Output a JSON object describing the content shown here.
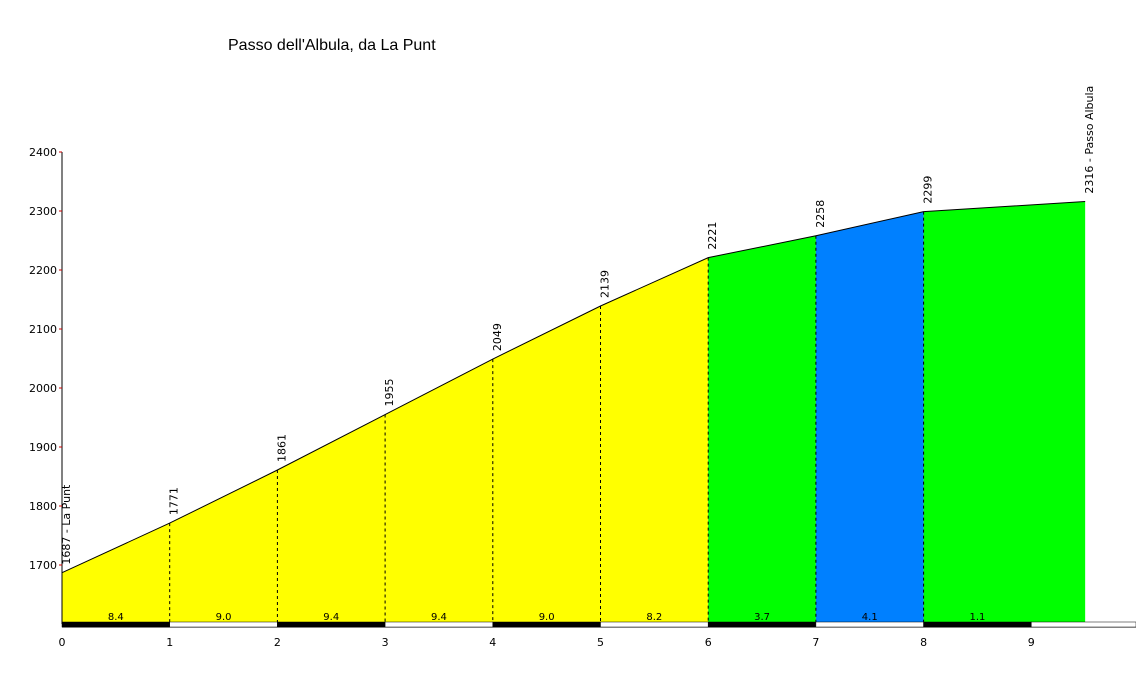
{
  "chart_data": {
    "type": "area",
    "title": "Passo dell'Albula, da La Punt",
    "xlabel": "",
    "ylabel": "",
    "xlim": [
      0,
      10
    ],
    "ylim": [
      1600,
      2400
    ],
    "x_ticks": [
      0,
      1,
      2,
      3,
      4,
      5,
      6,
      7,
      8,
      9
    ],
    "y_ticks": [
      1700,
      1800,
      1900,
      2000,
      2100,
      2200,
      2300,
      2400
    ],
    "points": [
      {
        "x": 0,
        "y": 1687,
        "label": "1687 - La Punt"
      },
      {
        "x": 1,
        "y": 1771,
        "label": "1771"
      },
      {
        "x": 2,
        "y": 1861,
        "label": "1861"
      },
      {
        "x": 3,
        "y": 1955,
        "label": "1955"
      },
      {
        "x": 4,
        "y": 2049,
        "label": "2049"
      },
      {
        "x": 5,
        "y": 2139,
        "label": "2139"
      },
      {
        "x": 6,
        "y": 2221,
        "label": "2221"
      },
      {
        "x": 7,
        "y": 2258,
        "label": "2258"
      },
      {
        "x": 8,
        "y": 2299,
        "label": "2299"
      },
      {
        "x": 9.5,
        "y": 2316,
        "label": "2316 - Passo Albula"
      }
    ],
    "segments": [
      {
        "from": 0,
        "to": 1,
        "gradient": "8.4",
        "color": "#ffff00"
      },
      {
        "from": 1,
        "to": 2,
        "gradient": "9.0",
        "color": "#ffff00"
      },
      {
        "from": 2,
        "to": 3,
        "gradient": "9.4",
        "color": "#ffff00"
      },
      {
        "from": 3,
        "to": 4,
        "gradient": "9.4",
        "color": "#ffff00"
      },
      {
        "from": 4,
        "to": 5,
        "gradient": "9.0",
        "color": "#ffff00"
      },
      {
        "from": 5,
        "to": 6,
        "gradient": "8.2",
        "color": "#ffff00"
      },
      {
        "from": 6,
        "to": 7,
        "gradient": "3.7",
        "color": "#00ff00"
      },
      {
        "from": 7,
        "to": 8,
        "gradient": "4.1",
        "color": "#0080ff"
      },
      {
        "from": 8,
        "to": 9.5,
        "gradient": "1.1",
        "color": "#00ff00"
      }
    ],
    "grid": false,
    "legend": "none"
  }
}
